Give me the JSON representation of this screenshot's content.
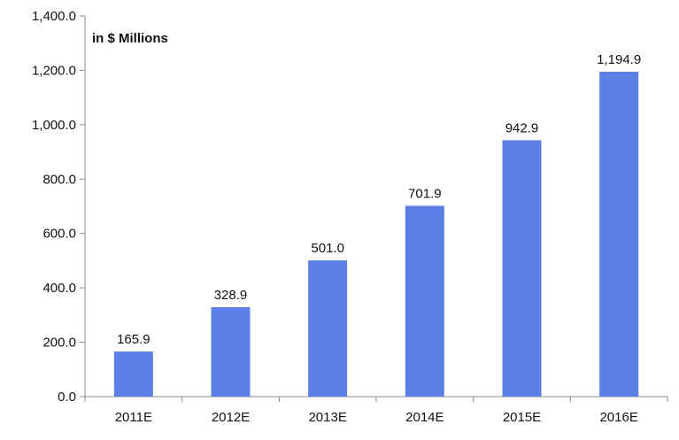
{
  "chart_data": {
    "type": "bar",
    "title": "",
    "unit_note": "in $ Millions",
    "xlabel": "",
    "ylabel": "",
    "ylim": [
      0,
      1400
    ],
    "y_ticks": [
      "0.0",
      "200.0",
      "400.0",
      "600.0",
      "800.0",
      "1,000.0",
      "1,200.0",
      "1,400.0"
    ],
    "y_tick_values": [
      0,
      200,
      400,
      600,
      800,
      1000,
      1200,
      1400
    ],
    "categories": [
      "2011E",
      "2012E",
      "2013E",
      "2014E",
      "2015E",
      "2016E"
    ],
    "values": [
      165.9,
      328.9,
      501.0,
      701.9,
      942.9,
      1194.9
    ],
    "value_labels": [
      "165.9",
      "328.9",
      "501.0",
      "701.9",
      "942.9",
      "1,194.9"
    ],
    "bar_color": "#5B7FE6",
    "grid": false,
    "legend": "none"
  }
}
